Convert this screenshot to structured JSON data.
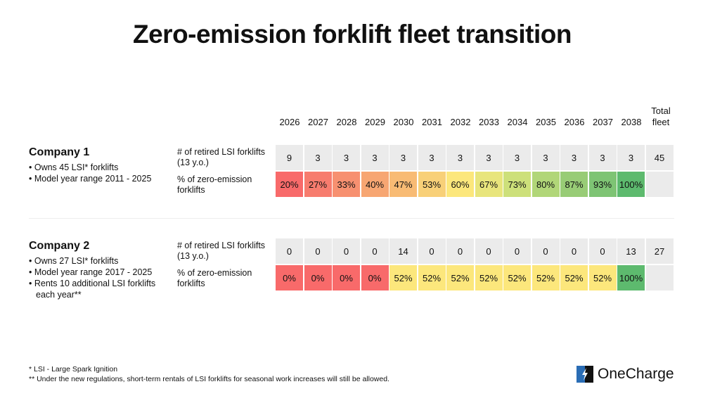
{
  "title": "Zero-emission forklift fleet transition",
  "years": [
    "2026",
    "2027",
    "2028",
    "2029",
    "2030",
    "2031",
    "2032",
    "2033",
    "2034",
    "2035",
    "2036",
    "2037",
    "2038"
  ],
  "total_header": "Total fleet",
  "row_labels": {
    "retired": "# of retired LSI forklifts (13 y.o.)",
    "pct": "% of zero-emission forklifts"
  },
  "colors": {
    "grey": "#ebebeb",
    "scale": {
      "0%": "#f86a6a",
      "20%": "#f86a6a",
      "27%": "#f77c6e",
      "33%": "#f79070",
      "40%": "#f7a672",
      "47%": "#f8bb74",
      "52%": "#fce77c",
      "53%": "#f8d078",
      "60%": "#fce77c",
      "67%": "#e8e57c",
      "73%": "#cde07a",
      "80%": "#b1d678",
      "87%": "#98cc76",
      "93%": "#7ec474",
      "100%": "#5dba6e"
    }
  },
  "companies": [
    {
      "name": "Company 1",
      "bullets": [
        "Owns 45 LSI* forklifts",
        "Model year range 2011 - 2025"
      ],
      "retired": [
        "9",
        "3",
        "3",
        "3",
        "3",
        "3",
        "3",
        "3",
        "3",
        "3",
        "3",
        "3",
        "3"
      ],
      "total": "45",
      "pct": [
        "20%",
        "27%",
        "33%",
        "40%",
        "47%",
        "53%",
        "60%",
        "67%",
        "73%",
        "80%",
        "87%",
        "93%",
        "100%"
      ]
    },
    {
      "name": "Company 2",
      "bullets": [
        "Owns 27 LSI* forklifts",
        "Model year range 2017 - 2025",
        "Rents 10 additional LSI forklifts each year**"
      ],
      "retired": [
        "0",
        "0",
        "0",
        "0",
        "14",
        "0",
        "0",
        "0",
        "0",
        "0",
        "0",
        "0",
        "13"
      ],
      "total": "27",
      "pct": [
        "0%",
        "0%",
        "0%",
        "0%",
        "52%",
        "52%",
        "52%",
        "52%",
        "52%",
        "52%",
        "52%",
        "52%",
        "100%"
      ]
    }
  ],
  "footnotes": [
    "*  LSI - Large Spark Ignition",
    "** Under the new regulations, short-term rentals of LSI forklifts for seasonal work increases will still be allowed."
  ],
  "logo": "OneCharge"
}
